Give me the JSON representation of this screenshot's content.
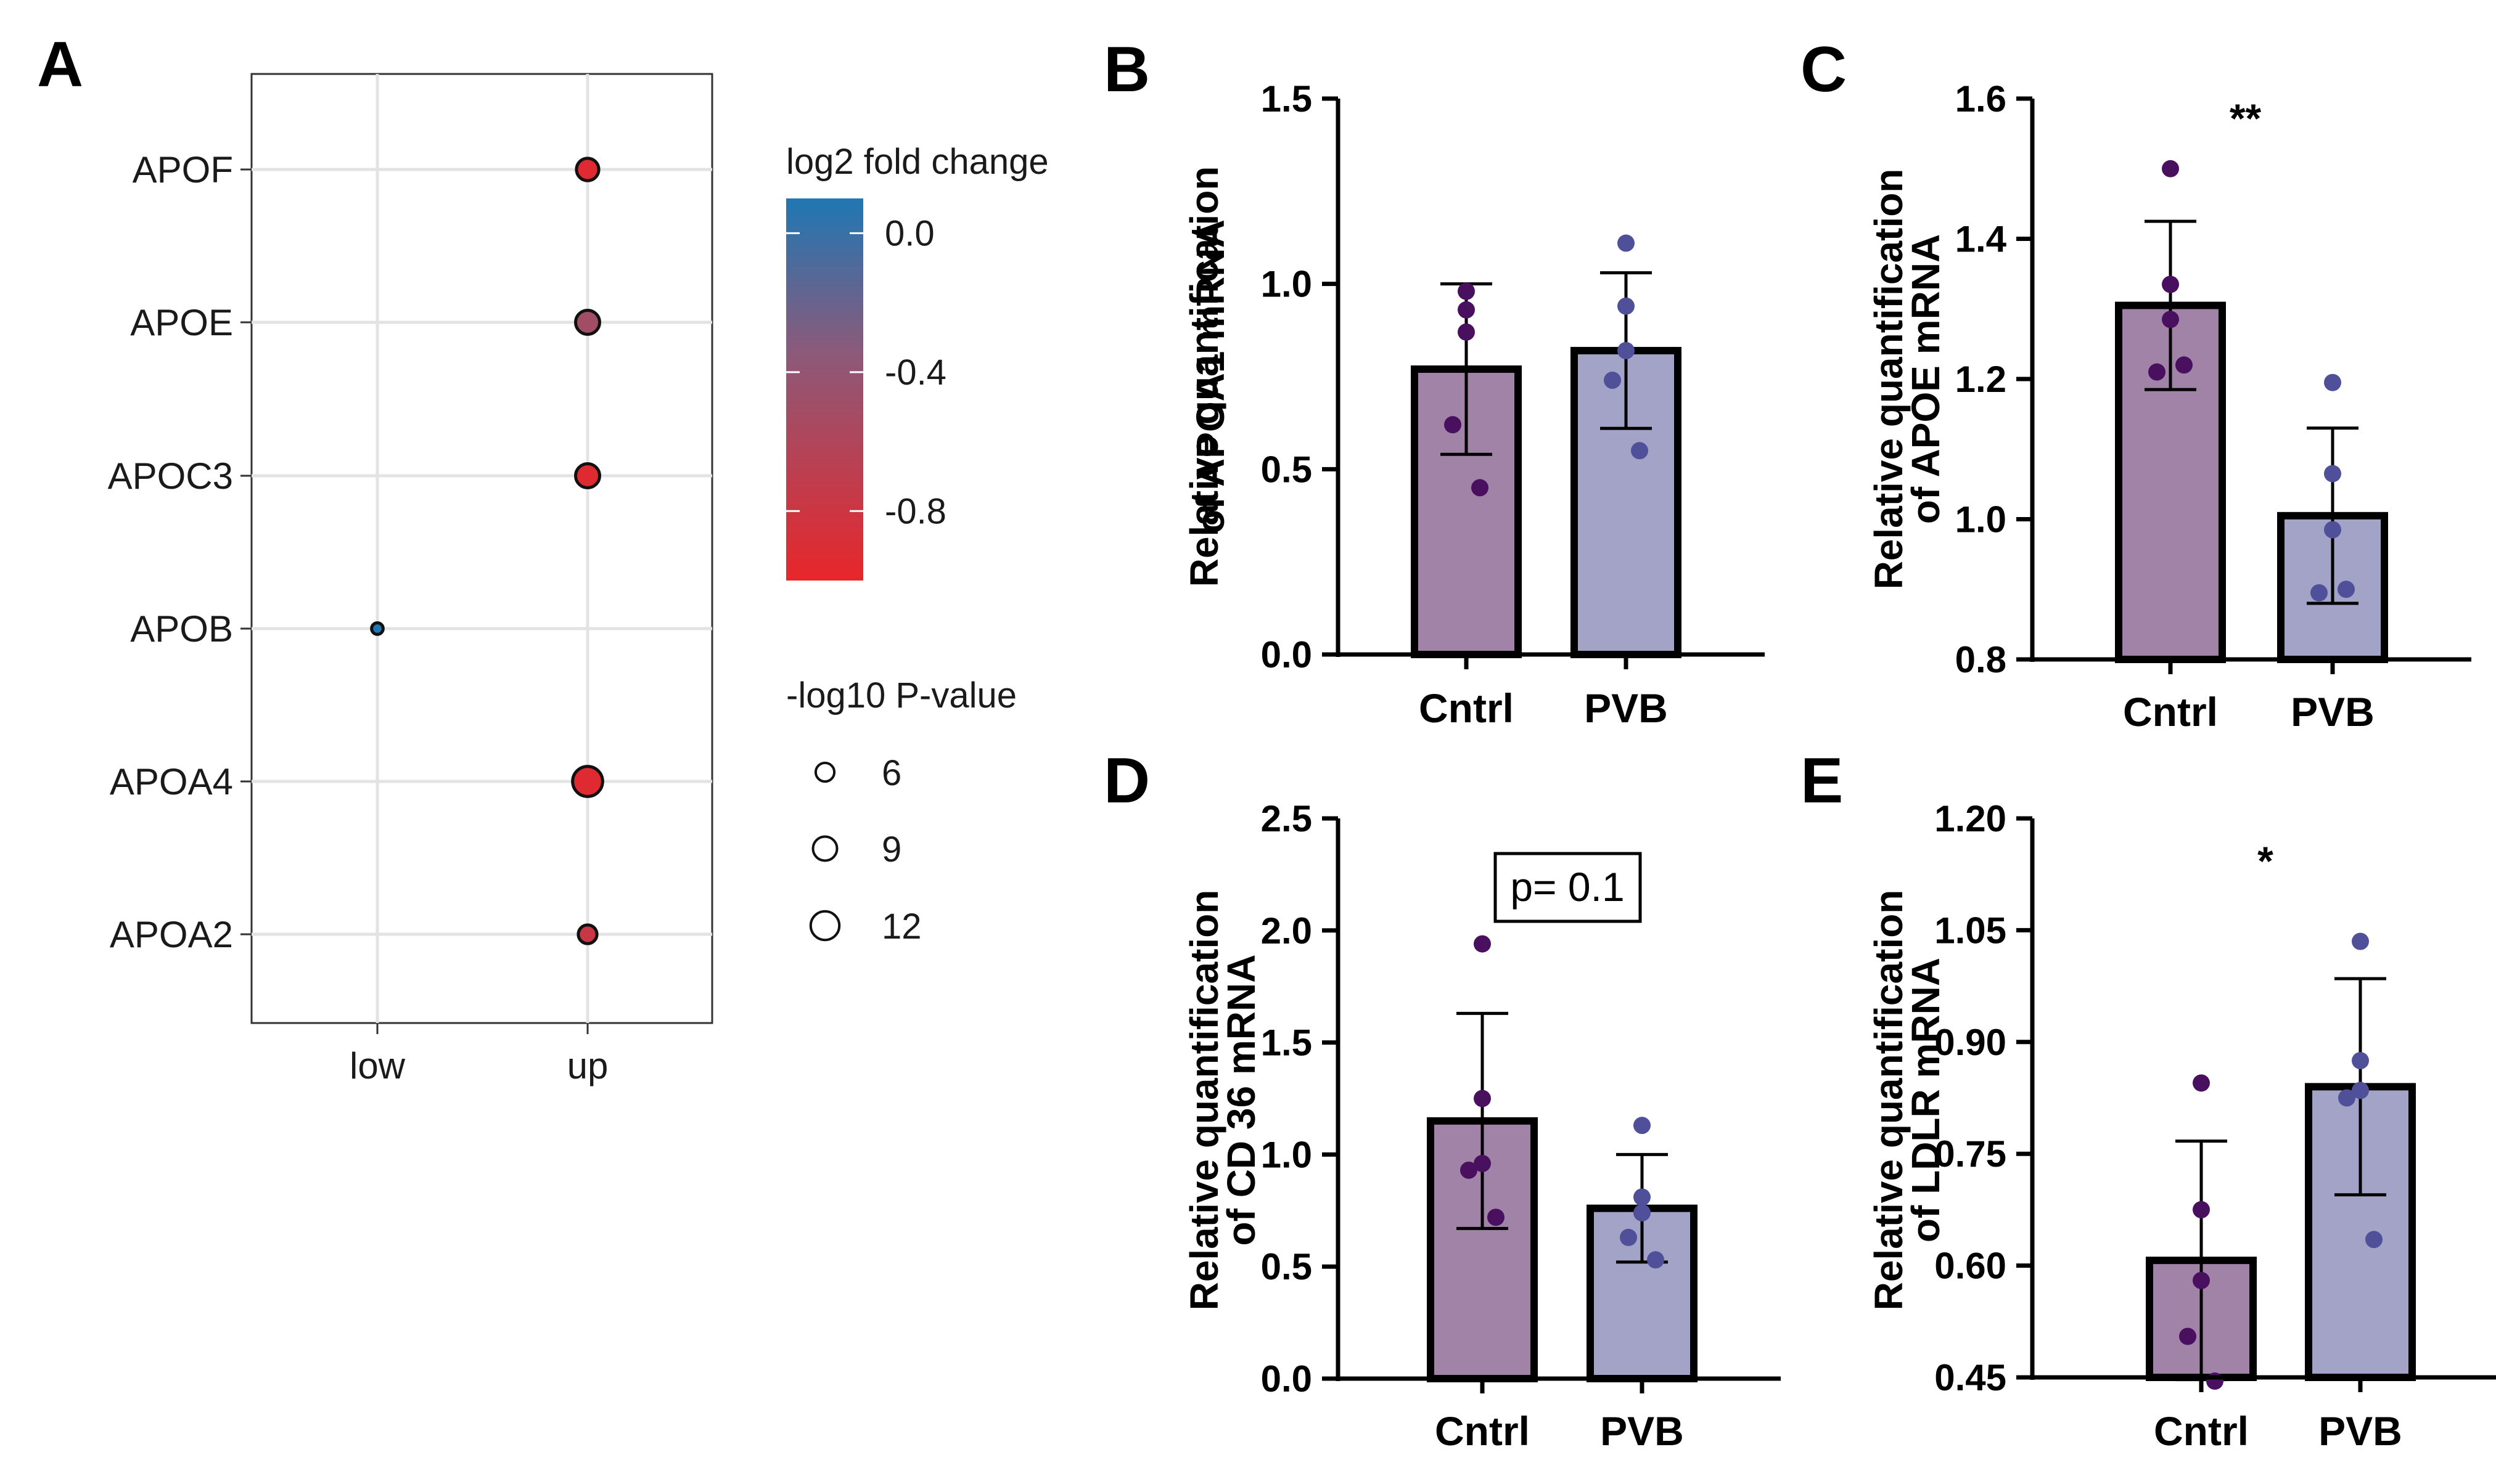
{
  "chart_data": [
    {
      "panel": "A",
      "type": "scatter",
      "categories_x": [
        "low",
        "up"
      ],
      "categories_y": [
        "APOF",
        "APOE",
        "APOC3",
        "APOB",
        "APOA4",
        "APOA2"
      ],
      "points": [
        {
          "gene": "APOF",
          "x": "up",
          "log2fc": -0.95,
          "neglog10p": 8
        },
        {
          "gene": "APOE",
          "x": "up",
          "log2fc": -0.55,
          "neglog10p": 9
        },
        {
          "gene": "APOC3",
          "x": "up",
          "log2fc": -0.95,
          "neglog10p": 9
        },
        {
          "gene": "APOB",
          "x": "low",
          "log2fc": 0.1,
          "neglog10p": 3
        },
        {
          "gene": "APOA4",
          "x": "up",
          "log2fc": -0.95,
          "neglog10p": 13
        },
        {
          "gene": "APOA2",
          "x": "up",
          "log2fc": -0.8,
          "neglog10p": 6
        }
      ],
      "color_legend": {
        "title": "log2 fold change",
        "ticks": [
          "0.0",
          "-0.4",
          "-0.8"
        ],
        "tick_values": [
          0.0,
          -0.4,
          -0.8
        ],
        "range": [
          -1.0,
          0.1
        ],
        "colors": {
          "high": "#1f77b4",
          "mid": "#8b5a7a",
          "low": "#e8262a"
        }
      },
      "size_legend": {
        "title": "-log10 P-value",
        "values": [
          6,
          9,
          12
        ],
        "labels": [
          "6",
          "9",
          "12"
        ]
      },
      "grid": true,
      "legend_position": "right"
    },
    {
      "panel": "B",
      "type": "bar",
      "categories": [
        "Cntrl",
        "PVB"
      ],
      "values": [
        0.77,
        0.82
      ],
      "sd": [
        0.23,
        0.21
      ],
      "points": [
        [
          0.98,
          0.93,
          0.87,
          0.62,
          0.45
        ],
        [
          1.11,
          0.94,
          0.82,
          0.74,
          0.55
        ]
      ],
      "ylabel": "Relative quantification of APOA1 mRNA",
      "ylim": [
        0.0,
        1.5
      ],
      "yticks": [
        "0.0",
        "0.5",
        "1.0",
        "1.5"
      ],
      "annotation": ""
    },
    {
      "panel": "C",
      "type": "bar",
      "categories": [
        "Cntrl",
        "PVB"
      ],
      "values": [
        1.305,
        1.005
      ],
      "sd": [
        0.12,
        0.125
      ],
      "points": [
        [
          1.5,
          1.335,
          1.285,
          1.21,
          1.22
        ],
        [
          1.195,
          1.065,
          0.985,
          0.895,
          0.9
        ]
      ],
      "ylabel": "Relative quantification of APOE mRNA",
      "ylim": [
        0.8,
        1.6
      ],
      "yticks": [
        "0.8",
        "1.0",
        "1.2",
        "1.4",
        "1.6"
      ],
      "annotation": "**"
    },
    {
      "panel": "D",
      "type": "bar",
      "categories": [
        "Cntrl",
        "PVB"
      ],
      "values": [
        1.15,
        0.76
      ],
      "sd": [
        0.48,
        0.24
      ],
      "points": [
        [
          1.94,
          1.25,
          0.96,
          0.93,
          0.72
        ],
        [
          1.13,
          0.81,
          0.74,
          0.63,
          0.53
        ]
      ],
      "ylabel": "Relative quantification of CD 36 mRNA",
      "ylim": [
        0.0,
        2.5
      ],
      "yticks": [
        "0.0",
        "0.5",
        "1.0",
        "1.5",
        "2.0",
        "2.5"
      ],
      "annotation": "p= 0.1"
    },
    {
      "panel": "E",
      "type": "bar",
      "categories": [
        "Cntrl",
        "PVB"
      ],
      "values": [
        0.607,
        0.84
      ],
      "sd": [
        0.16,
        0.145
      ],
      "points": [
        [
          0.845,
          0.675,
          0.58,
          0.505,
          0.445
        ],
        [
          1.035,
          0.875,
          0.835,
          0.825,
          0.635
        ]
      ],
      "ylabel": "Relative quantification of LDLR mRNA",
      "ylim": [
        0.45,
        1.2
      ],
      "yticks": [
        "0.45",
        "0.60",
        "0.75",
        "0.90",
        "1.05",
        "1.20"
      ],
      "annotation": "*"
    }
  ],
  "styles": {
    "cntrl_bar": "#a283a8",
    "pvb_bar": "#a3a3c7",
    "cntrl_dot": "#4a1060",
    "pvb_dot": "#4f4f9a"
  }
}
